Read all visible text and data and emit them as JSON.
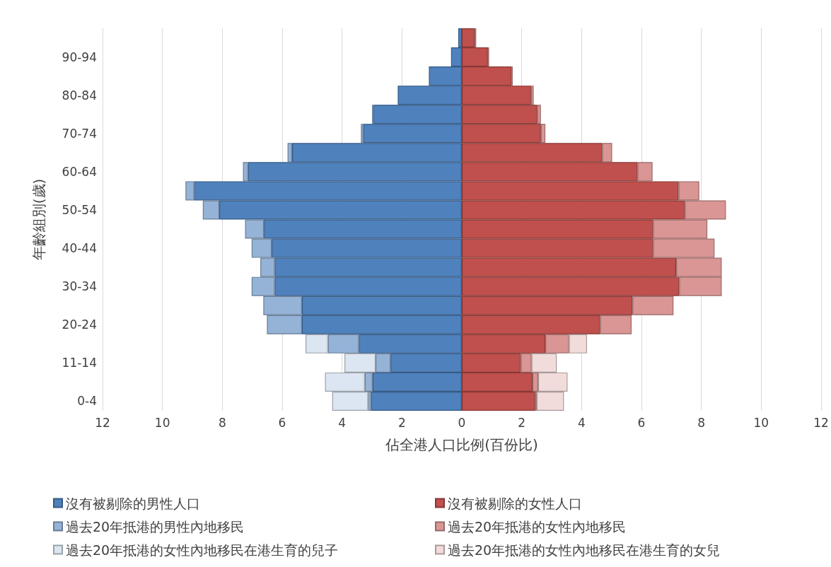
{
  "chart_data": {
    "type": "bar",
    "orientation": "horizontal",
    "stacked": true,
    "xlabel": "佔全港人口比例(百份比)",
    "ylabel": "年齡組別(歲)",
    "categories": [
      null,
      "90-94",
      null,
      "80-84",
      null,
      "70-74",
      null,
      "60-64",
      null,
      "50-54",
      null,
      "40-44",
      null,
      "30-34",
      null,
      "20-24",
      null,
      "11-14",
      null,
      "0-4"
    ],
    "series": [
      {
        "name": "沒有被剔除的男性人口",
        "color": "#4f81bd",
        "values": [
          -0.12,
          -0.36,
          -1.1,
          -2.14,
          -2.96,
          -3.29,
          -5.67,
          -7.14,
          -8.94,
          -8.1,
          -6.61,
          -6.35,
          -6.25,
          -6.25,
          -5.34,
          -5.34,
          -3.44,
          -2.38,
          -2.98,
          -3.03
        ]
      },
      {
        "name": "沒有被剔除的女性人口",
        "color": "#c0504d",
        "values": [
          0.43,
          0.87,
          1.66,
          2.31,
          2.52,
          2.64,
          4.69,
          5.87,
          7.24,
          7.45,
          6.39,
          6.39,
          7.16,
          7.26,
          5.7,
          4.62,
          2.79,
          1.97,
          2.36,
          2.45
        ]
      },
      {
        "name": "過去20年抵港的男性內地移民",
        "color": "#95b3d7",
        "values": [
          null,
          null,
          null,
          null,
          -0.04,
          -0.08,
          -0.15,
          -0.17,
          -0.29,
          -0.55,
          -0.63,
          -0.67,
          -0.48,
          -0.77,
          -1.29,
          -1.17,
          -1.03,
          -0.5,
          -0.26,
          -0.1
        ]
      },
      {
        "name": "過去20年抵港的女性內地移民",
        "color": "#d99694",
        "values": [
          0.05,
          0.04,
          0.04,
          0.09,
          0.12,
          0.15,
          0.33,
          0.5,
          0.69,
          1.37,
          1.81,
          2.05,
          1.52,
          1.42,
          1.37,
          1.05,
          0.79,
          0.36,
          0.19,
          0.05
        ]
      },
      {
        "name": "過去20年抵港的女性內地移民在港生育的兒子",
        "color": "#dce6f2",
        "values": [
          null,
          null,
          null,
          null,
          null,
          null,
          null,
          null,
          null,
          null,
          null,
          null,
          null,
          null,
          null,
          null,
          -0.75,
          -1.04,
          -1.33,
          -1.2
        ]
      },
      {
        "name": "過去20年抵港的女性內地移民在港生育的女兒",
        "color": "#f2dcdb",
        "values": [
          null,
          null,
          null,
          null,
          null,
          null,
          null,
          null,
          null,
          null,
          null,
          null,
          null,
          null,
          null,
          null,
          0.6,
          0.84,
          0.98,
          0.91
        ]
      }
    ],
    "xlim": [
      -12,
      12
    ],
    "xticks": [
      {
        "value": -12,
        "label": "12"
      },
      {
        "value": -10,
        "label": "10"
      },
      {
        "value": -8,
        "label": "8"
      },
      {
        "value": -6,
        "label": "6"
      },
      {
        "value": -4,
        "label": "4"
      },
      {
        "value": -2,
        "label": "2"
      },
      0,
      2,
      4,
      6,
      8,
      10,
      12
    ],
    "grid": "x",
    "legend": "bottom"
  }
}
